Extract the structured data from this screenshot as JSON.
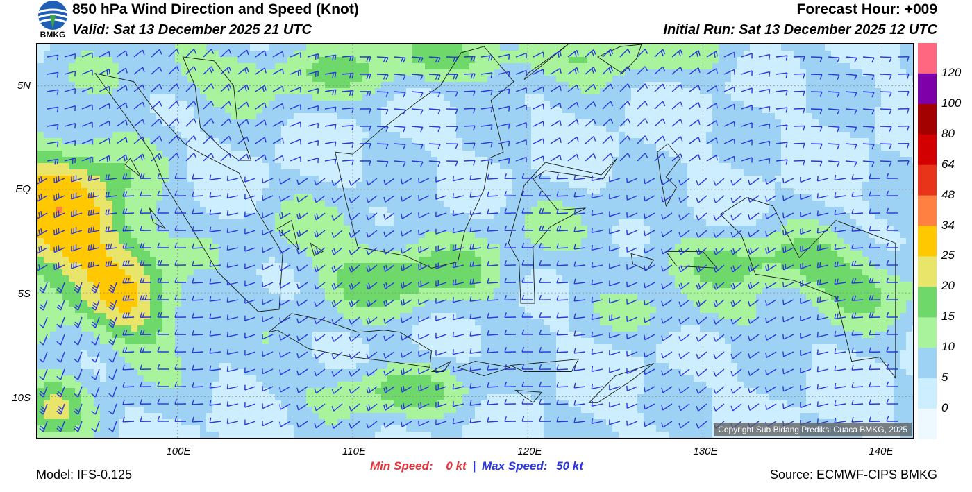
{
  "header": {
    "logo_text": "BMKG",
    "title": "850 hPa Wind Direction and Speed (Knot)",
    "valid": "Valid: Sat 13 December 2025 21 UTC",
    "forecast_hour": "Forecast Hour: +009",
    "initial_run": "Initial Run: Sat 13 December 2025 12 UTC"
  },
  "map": {
    "lon_range": [
      92,
      142
    ],
    "lat_range": [
      -12,
      7
    ],
    "lat_ticks": [
      "5N",
      "EQ",
      "5S",
      "10S"
    ],
    "lat_values": [
      5,
      0,
      -5,
      -10
    ],
    "lon_ticks": [
      "100E",
      "110E",
      "120E",
      "130E",
      "140E"
    ],
    "lon_values": [
      100,
      110,
      120,
      130,
      140
    ],
    "copyright": "Copyright Sub Bidang Prediksi Cuaca BMKG, 2025"
  },
  "colorbar": {
    "labels": [
      "120",
      "100",
      "80",
      "64",
      "48",
      "34",
      "25",
      "20",
      "15",
      "10",
      "5",
      "0"
    ],
    "colors": [
      "#ff6680",
      "#7d00a8",
      "#a30000",
      "#d20000",
      "#e8351a",
      "#ff8040",
      "#ffc800",
      "#e9e56b",
      "#6fd86b",
      "#a8f39c",
      "#9dd2f5",
      "#cdeeff",
      "#eef8ff"
    ]
  },
  "footer": {
    "model": "Model: IFS-0.125",
    "min_speed_label": "Min Speed:",
    "min_speed_value": "0 kt",
    "separator": "|",
    "max_speed_label": "Max Speed:",
    "max_speed_value": "50 kt",
    "source": "Source: ECMWF-CIPS BMKG"
  },
  "style": {
    "min_color": "#e8303a",
    "max_color": "#2a36e0",
    "barb_color": "#2a36e0"
  }
}
